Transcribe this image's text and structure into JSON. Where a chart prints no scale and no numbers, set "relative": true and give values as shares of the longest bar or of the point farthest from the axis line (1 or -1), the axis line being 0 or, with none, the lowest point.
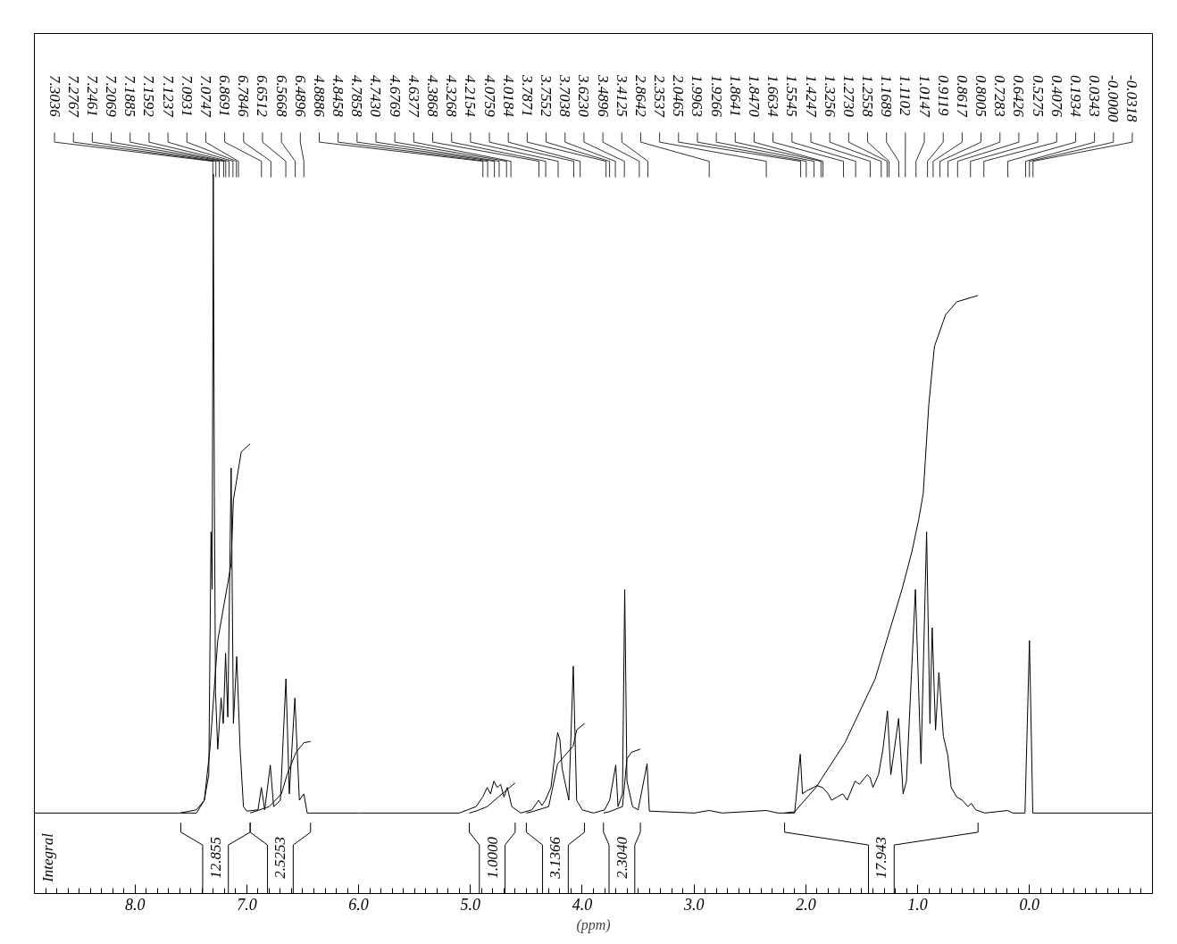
{
  "chart_data": {
    "type": "line",
    "relative": true,
    "xlabel": "(ppm)",
    "xlim": [
      8.9,
      -1.1
    ],
    "xticks": [
      {
        "value": 8,
        "label": "8.0"
      },
      {
        "value": 7,
        "label": "7.0"
      },
      {
        "value": 6,
        "label": "6.0"
      },
      {
        "value": 5,
        "label": "5.0"
      },
      {
        "value": 4,
        "label": "4.0"
      },
      {
        "value": 3,
        "label": "3.0"
      },
      {
        "value": 2,
        "label": "2.0"
      },
      {
        "value": 1,
        "label": "1.0"
      },
      {
        "value": 0,
        "label": "0.0"
      }
    ],
    "series": [
      {
        "color": "#000000",
        "x": [
          8.9,
          7.6,
          7.45,
          7.38,
          7.34,
          7.32,
          7.31,
          7.3,
          7.29,
          7.28,
          7.26,
          7.23,
          7.21,
          7.19,
          7.17,
          7.14,
          7.12,
          7.09,
          7.06,
          7.03,
          7.0,
          6.9,
          6.87,
          6.84,
          6.79,
          6.76,
          6.7,
          6.65,
          6.62,
          6.57,
          6.53,
          6.49,
          6.46,
          6.0,
          5.1,
          4.95,
          4.89,
          4.85,
          4.82,
          4.79,
          4.76,
          4.73,
          4.7,
          4.67,
          4.63,
          4.55,
          4.45,
          4.39,
          4.36,
          4.33,
          4.28,
          4.22,
          4.2,
          4.18,
          4.12,
          4.08,
          4.05,
          4.0,
          3.9,
          3.8,
          3.755,
          3.7,
          3.68,
          3.64,
          3.62,
          3.6,
          3.55,
          3.5,
          3.42,
          3.4,
          3.0,
          2.8642,
          2.75,
          2.3537,
          2.25,
          2.1,
          2.05,
          2.03,
          1.99,
          1.93,
          1.9,
          1.85,
          1.8,
          1.77,
          1.72,
          1.67,
          1.63,
          1.56,
          1.52,
          1.45,
          1.4247,
          1.4,
          1.35,
          1.31,
          1.27,
          1.24,
          1.17,
          1.13,
          1.1,
          1.02,
          0.97,
          0.92,
          0.89,
          0.87,
          0.84,
          0.81,
          0.77,
          0.73,
          0.7,
          0.65,
          0.6,
          0.55,
          0.52,
          0.48,
          0.4,
          0.1934,
          0.15,
          0.04,
          0.0,
          -0.03,
          -1.1
        ],
        "values": [
          0,
          0,
          0.005,
          0.02,
          0.06,
          0.44,
          0.35,
          1.0,
          0.5,
          0.19,
          0.1,
          0.18,
          0.14,
          0.25,
          0.15,
          0.54,
          0.14,
          0.245,
          0.1,
          0.01,
          0.003,
          0.005,
          0.04,
          0.005,
          0.075,
          0.01,
          0.02,
          0.21,
          0.03,
          0.18,
          0.02,
          0.03,
          0,
          0,
          0,
          0.01,
          0.025,
          0.04,
          0.03,
          0.05,
          0.04,
          0.045,
          0.025,
          0.04,
          0.01,
          0,
          0.005,
          0.02,
          0.012,
          0.02,
          0.04,
          0.126,
          0.115,
          0.07,
          0.02,
          0.23,
          0.02,
          0.005,
          0,
          0.005,
          0.02,
          0.075,
          0.01,
          0.03,
          0.35,
          0.05,
          0.01,
          0.005,
          0.077,
          0.003,
          0,
          0.004,
          0,
          0.004,
          0,
          0,
          0.092,
          0.03,
          0.035,
          0.04,
          0.043,
          0.04,
          0.03,
          0.02,
          0.025,
          0.03,
          0.02,
          0.05,
          0.045,
          0.06,
          0.055,
          0.04,
          0.06,
          0.1,
          0.16,
          0.06,
          0.148,
          0.03,
          0.05,
          0.35,
          0.077,
          0.44,
          0.14,
          0.29,
          0.13,
          0.22,
          0.12,
          0.09,
          0.04,
          0.025,
          0.02,
          0.01,
          0.015,
          0.005,
          0,
          0.004,
          0,
          0,
          0.27,
          0,
          0
        ]
      },
      {
        "color": "#000000",
        "x": [
          7.59,
          7.45,
          7.38,
          7.33,
          7.26,
          7.14,
          7.12,
          7.05,
          6.97
        ],
        "values": [
          0,
          0,
          0.02,
          0.1,
          0.27,
          0.39,
          0.49,
          0.565,
          0.578
        ]
      },
      {
        "color": "#000000",
        "x": [
          6.97,
          6.8,
          6.69,
          6.64,
          6.56,
          6.49,
          6.43
        ],
        "values": [
          0,
          0.01,
          0.03,
          0.06,
          0.095,
          0.11,
          0.112
        ]
      },
      {
        "color": "#000000",
        "x": [
          5.01,
          4.95,
          4.85,
          4.75,
          4.65,
          4.6
        ],
        "values": [
          0,
          0.003,
          0.01,
          0.025,
          0.04,
          0.047
        ]
      },
      {
        "color": "#000000",
        "x": [
          4.5,
          4.45,
          4.3,
          4.22,
          4.08,
          4.05,
          3.98
        ],
        "values": [
          0,
          0.002,
          0.01,
          0.077,
          0.105,
          0.13,
          0.14
        ]
      },
      {
        "color": "#000000",
        "x": [
          3.81,
          3.76,
          3.64,
          3.6,
          3.56,
          3.48
        ],
        "values": [
          0,
          0.002,
          0.01,
          0.085,
          0.095,
          0.1
        ]
      },
      {
        "color": "#000000",
        "x": [
          2.19,
          2.1,
          1.91,
          1.65,
          1.38,
          1.26,
          1.14,
          1.05,
          0.99,
          0.95,
          0.9,
          0.85,
          0.75,
          0.65,
          0.46
        ],
        "values": [
          0,
          0.002,
          0.04,
          0.11,
          0.21,
          0.28,
          0.35,
          0.41,
          0.46,
          0.5,
          0.64,
          0.73,
          0.78,
          0.8,
          0.81
        ]
      }
    ],
    "annotations": [
      {
        "text": "7.3036",
        "x": 7.3036
      },
      {
        "text": "7.2767",
        "x": 7.2767
      },
      {
        "text": "7.2461",
        "x": 7.2461
      },
      {
        "text": "7.2069",
        "x": 7.2069
      },
      {
        "text": "7.1885",
        "x": 7.1885
      },
      {
        "text": "7.1592",
        "x": 7.1592
      },
      {
        "text": "7.1237",
        "x": 7.1237
      },
      {
        "text": "7.0931",
        "x": 7.0931
      },
      {
        "text": "7.0747",
        "x": 7.0747
      },
      {
        "text": "6.8691",
        "x": 6.8691
      },
      {
        "text": "6.7846",
        "x": 6.7846
      },
      {
        "text": "6.6512",
        "x": 6.6512
      },
      {
        "text": "6.5668",
        "x": 6.5668
      },
      {
        "text": "6.4896",
        "x": 6.4896
      },
      {
        "text": "4.8886",
        "x": 4.8886
      },
      {
        "text": "4.8458",
        "x": 4.8458
      },
      {
        "text": "4.7858",
        "x": 4.7858
      },
      {
        "text": "4.7430",
        "x": 4.743
      },
      {
        "text": "4.6769",
        "x": 4.6769
      },
      {
        "text": "4.6377",
        "x": 4.6377
      },
      {
        "text": "4.3868",
        "x": 4.3868
      },
      {
        "text": "4.3268",
        "x": 4.3268
      },
      {
        "text": "4.2154",
        "x": 4.2154
      },
      {
        "text": "4.0759",
        "x": 4.0759
      },
      {
        "text": "4.0184",
        "x": 4.0184
      },
      {
        "text": "3.7871",
        "x": 3.7871
      },
      {
        "text": "3.7552",
        "x": 3.7552
      },
      {
        "text": "3.7038",
        "x": 3.7038
      },
      {
        "text": "3.6230",
        "x": 3.623
      },
      {
        "text": "3.4896",
        "x": 3.4896
      },
      {
        "text": "3.4125",
        "x": 3.4125
      },
      {
        "text": "2.8642",
        "x": 2.8642
      },
      {
        "text": "2.3537",
        "x": 2.3537
      },
      {
        "text": "2.0465",
        "x": 2.0465
      },
      {
        "text": "1.9963",
        "x": 1.9963
      },
      {
        "text": "1.9266",
        "x": 1.9266
      },
      {
        "text": "1.8641",
        "x": 1.8641
      },
      {
        "text": "1.8470",
        "x": 1.847
      },
      {
        "text": "1.6634",
        "x": 1.6634
      },
      {
        "text": "1.5545",
        "x": 1.5545
      },
      {
        "text": "1.4247",
        "x": 1.4247
      },
      {
        "text": "1.3256",
        "x": 1.3256
      },
      {
        "text": "1.2730",
        "x": 1.273
      },
      {
        "text": "1.2558",
        "x": 1.2558
      },
      {
        "text": "1.1689",
        "x": 1.1689
      },
      {
        "text": "1.1102",
        "x": 1.1102
      },
      {
        "text": "1.0147",
        "x": 1.0147
      },
      {
        "text": "0.9119",
        "x": 0.9119
      },
      {
        "text": "0.8617",
        "x": 0.8617
      },
      {
        "text": "0.8005",
        "x": 0.8005
      },
      {
        "text": "0.7283",
        "x": 0.7283
      },
      {
        "text": "0.6426",
        "x": 0.6426
      },
      {
        "text": "0.5275",
        "x": 0.5275
      },
      {
        "text": "0.4076",
        "x": 0.4076
      },
      {
        "text": "0.1934",
        "x": 0.1934
      },
      {
        "text": "0.0343",
        "x": 0.0343
      },
      {
        "text": "-0.0000",
        "x": 0.0
      },
      {
        "text": "-0.0318",
        "x": -0.0318
      },
      "Integral",
      "12.855",
      "2.5253",
      "1.0000",
      "3.1366",
      "2.3040",
      "17.943"
    ]
  }
}
